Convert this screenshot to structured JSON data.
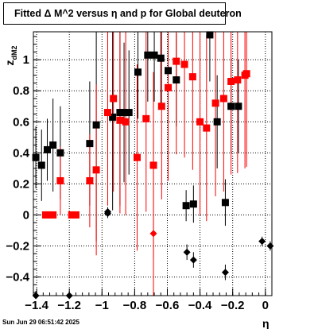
{
  "chart_data": {
    "type": "scatter",
    "title": "Fitted Δ M^2 versus η and p for Global deuteron",
    "xlabel": "η",
    "ylabel": "z",
    "ylabel_subscript": "dM2",
    "xlim": [
      -1.42,
      0.04
    ],
    "ylim": [
      -0.52,
      1.18
    ],
    "x_ticks": [
      -1.4,
      -1.2,
      -1.0,
      -0.8,
      -0.6,
      -0.4,
      -0.2,
      0
    ],
    "x_tick_labels": [
      "−1.4",
      "−1.2",
      "−1",
      "−0.8",
      "−0.6",
      "−0.4",
      "−0.2",
      "0"
    ],
    "y_ticks": [
      -0.4,
      -0.2,
      0,
      0.2,
      0.4,
      0.6,
      0.8,
      1
    ],
    "y_tick_labels": [
      "−0.4",
      "−0.2",
      "0",
      "0.2",
      "0.4",
      "0.6",
      "0.8",
      "1"
    ],
    "grid": true,
    "series": [
      {
        "color": "#000000",
        "marker": "square",
        "points": [
          {
            "x": -1.405,
            "y": 0.37,
            "err": 0.2
          },
          {
            "x": -1.37,
            "y": 0.32,
            "err": 0.23
          },
          {
            "x": -1.335,
            "y": 0.42,
            "err": 0.2
          },
          {
            "x": -1.3,
            "y": 0.45,
            "err": 0.3
          },
          {
            "x": -1.255,
            "y": 0.4,
            "err": 0.3
          },
          {
            "x": -1.075,
            "y": 0.46,
            "err": 0.4
          },
          {
            "x": -1.035,
            "y": 0.58,
            "err": 0.75
          },
          {
            "x": -0.935,
            "y": 0.63,
            "err": 0.6
          },
          {
            "x": -0.89,
            "y": 0.66,
            "err": 0.6
          },
          {
            "x": -0.865,
            "y": 0.66,
            "err": 0.45
          },
          {
            "x": -0.835,
            "y": 0.66,
            "err": 0.4
          },
          {
            "x": -0.78,
            "y": 0.92,
            "err": 0.3
          },
          {
            "x": -0.72,
            "y": 1.03,
            "err": 0.3
          },
          {
            "x": -0.68,
            "y": 1.03,
            "err": 0.3
          },
          {
            "x": -0.64,
            "y": 1.01,
            "err": 0.3
          },
          {
            "x": -0.595,
            "y": 0.93,
            "err": 0.3
          },
          {
            "x": -0.545,
            "y": 0.87,
            "err": 0.3
          },
          {
            "x": -0.485,
            "y": 0.06,
            "err": 0.1
          },
          {
            "x": -0.44,
            "y": 0.07,
            "err": 0.12
          },
          {
            "x": -0.34,
            "y": 1.16,
            "err": 0.3
          },
          {
            "x": -0.295,
            "y": 0.6,
            "err": 0.3
          },
          {
            "x": -0.245,
            "y": 0.08,
            "err": 0.15
          },
          {
            "x": -0.21,
            "y": 0.7,
            "err": 0.3
          },
          {
            "x": -0.165,
            "y": 0.7,
            "err": 0.3
          }
        ]
      },
      {
        "color": "#000000",
        "marker": "diamond",
        "points": [
          {
            "x": -1.405,
            "y": -0.52,
            "err": 0.03
          },
          {
            "x": -1.2,
            "y": -0.52,
            "err": 0.03
          },
          {
            "x": -0.965,
            "y": 0.01,
            "err": 0.03
          },
          {
            "x": -0.965,
            "y": 0.02,
            "err": 0.03
          },
          {
            "x": -0.48,
            "y": -0.24,
            "err": 0.05
          },
          {
            "x": -0.44,
            "y": -0.29,
            "err": 0.05
          },
          {
            "x": -0.245,
            "y": -0.37,
            "err": 0.05
          },
          {
            "x": -0.02,
            "y": -0.17,
            "err": 0.03
          },
          {
            "x": 0.03,
            "y": -0.2,
            "err": 0.03
          }
        ]
      },
      {
        "color": "#ff0000",
        "marker": "square",
        "points": [
          {
            "x": -1.345,
            "y": 0.0,
            "err": 0.0
          },
          {
            "x": -1.325,
            "y": 0.0,
            "err": 0.0
          },
          {
            "x": -1.3,
            "y": 0.0,
            "err": 0.0
          },
          {
            "x": -1.255,
            "y": 0.22,
            "err": 0.22
          },
          {
            "x": -1.185,
            "y": 0.0,
            "err": 0.0
          },
          {
            "x": -1.16,
            "y": 0.0,
            "err": 0.0
          },
          {
            "x": -1.075,
            "y": 0.22,
            "err": 0.3
          },
          {
            "x": -1.035,
            "y": 0.29,
            "err": 0.55
          },
          {
            "x": -0.965,
            "y": 0.66,
            "err": 0.6
          },
          {
            "x": -0.93,
            "y": 0.75,
            "err": 0.6
          },
          {
            "x": -0.89,
            "y": 0.61,
            "err": 0.6
          },
          {
            "x": -0.855,
            "y": 0.6,
            "err": 0.6
          },
          {
            "x": -0.785,
            "y": 0.37,
            "err": 0.6
          },
          {
            "x": -0.73,
            "y": 0.62,
            "err": 0.6
          },
          {
            "x": -0.685,
            "y": 0.32,
            "err": 0.6
          },
          {
            "x": -0.635,
            "y": 0.7,
            "err": 0.6
          },
          {
            "x": -0.595,
            "y": 0.82,
            "err": 0.6
          },
          {
            "x": -0.545,
            "y": 0.99,
            "err": 0.6
          },
          {
            "x": -0.495,
            "y": 0.97,
            "err": 0.6
          },
          {
            "x": -0.445,
            "y": 0.89,
            "err": 0.6
          },
          {
            "x": -0.4,
            "y": 0.6,
            "err": 0.6
          },
          {
            "x": -0.36,
            "y": 0.56,
            "err": 0.6
          },
          {
            "x": -0.305,
            "y": 0.72,
            "err": 0.6
          },
          {
            "x": -0.255,
            "y": 0.75,
            "err": 0.6
          },
          {
            "x": -0.21,
            "y": 0.86,
            "err": 0.6
          },
          {
            "x": -0.17,
            "y": 0.87,
            "err": 0.6
          },
          {
            "x": -0.125,
            "y": 0.9,
            "err": 0.6
          },
          {
            "x": -0.115,
            "y": 0.91,
            "err": 0.6
          }
        ]
      },
      {
        "color": "#ff0000",
        "marker": "diamond",
        "points": [
          {
            "x": -0.685,
            "y": -0.12,
            "err": 0.6
          }
        ]
      }
    ]
  },
  "footer": {
    "timestamp": "Sun Jun 29 06:51:42 2025"
  }
}
